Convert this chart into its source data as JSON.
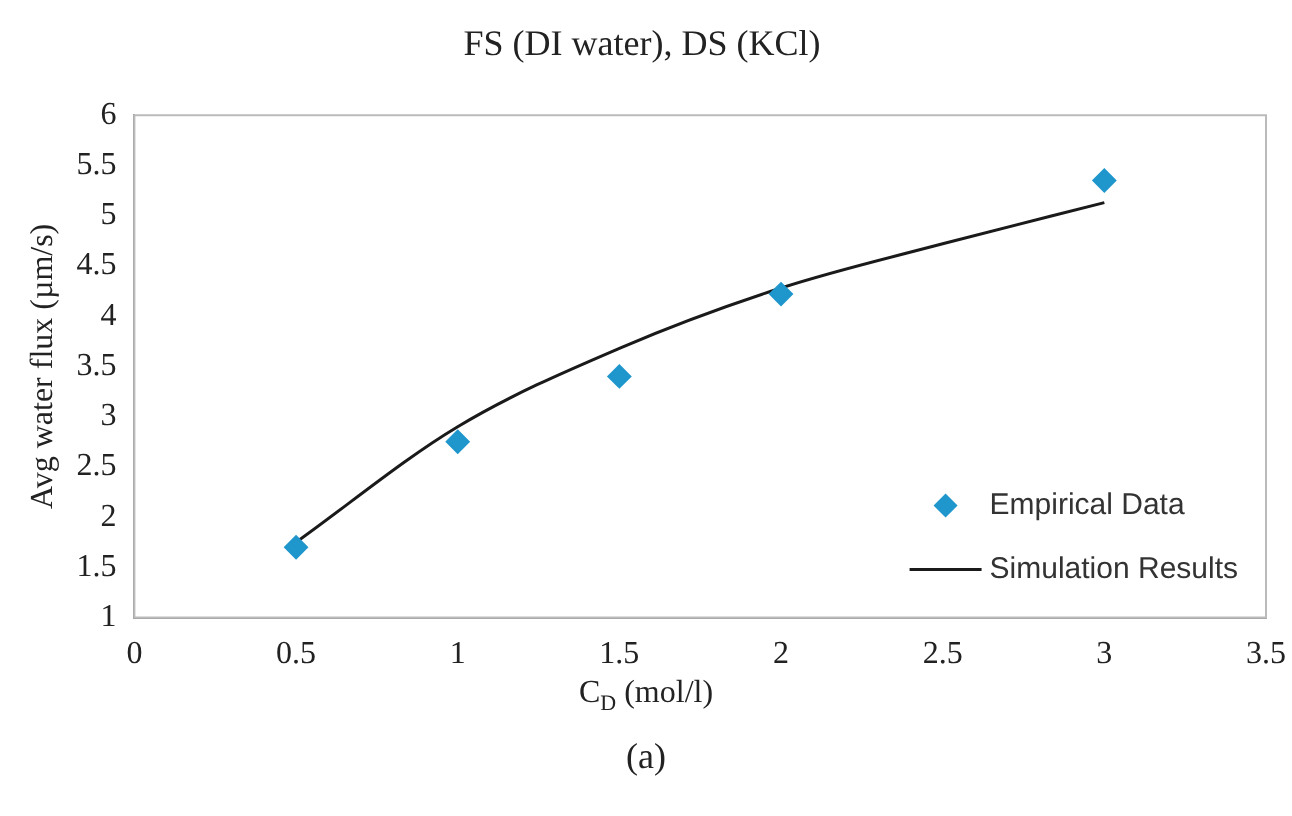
{
  "chart_data": {
    "type": "scatter",
    "title": "FS (DI water), DS (KCl)",
    "xlabel": "C$_{D}$ (mol/l)",
    "ylabel": "Avg water flux (µm/s)",
    "annotations": [
      "(a)"
    ],
    "x": [
      0.5,
      1,
      1.5,
      2,
      3
    ],
    "series": [
      {
        "name": "Empirical Data",
        "color": "#1f96cc",
        "marker": "diamond",
        "values": [
          1.7,
          2.75,
          3.4,
          4.22,
          5.35
        ]
      },
      {
        "name": "Simulation Results",
        "type": "line",
        "color": "#1a1a1a",
        "marker": "none",
        "x": [
          0.5,
          1,
          1.5,
          2,
          2.5,
          3
        ],
        "values": [
          1.75,
          2.9,
          3.68,
          4.28,
          4.72,
          5.13
        ]
      }
    ],
    "xlim": [
      0,
      3.5
    ],
    "xticks": [
      0,
      0.5,
      1,
      1.5,
      2,
      2.5,
      3,
      3.5
    ],
    "ylim": [
      1,
      6
    ],
    "yticks": [
      1,
      1.5,
      2,
      2.5,
      3,
      3.5,
      4,
      4.5,
      5,
      5.5,
      6
    ],
    "grid": false,
    "legend": "bottom right"
  }
}
